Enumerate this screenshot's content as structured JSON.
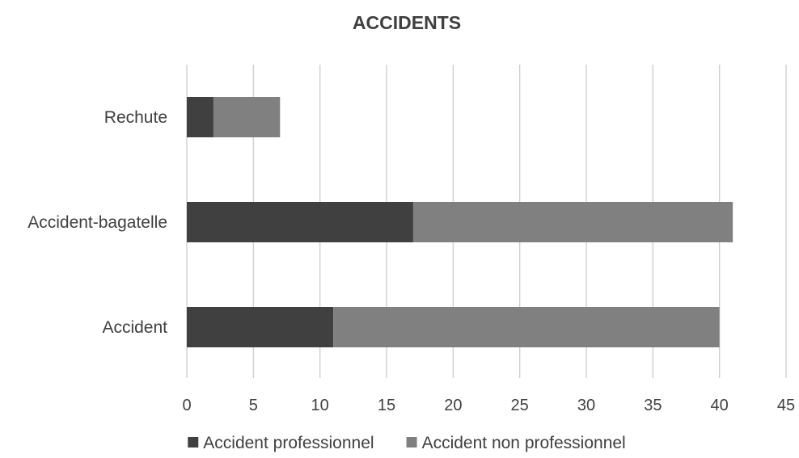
{
  "chart_data": {
    "type": "bar",
    "orientation": "horizontal",
    "stacked": true,
    "title": "ACCIDENTS",
    "categories": [
      "Accident",
      "Accident-bagatelle",
      "Rechute"
    ],
    "series": [
      {
        "name": "Accident professionnel",
        "values": [
          11,
          17,
          2
        ],
        "color": "#404040"
      },
      {
        "name": "Accident non professionnel",
        "values": [
          29,
          24,
          5
        ],
        "color": "#808080"
      }
    ],
    "xlim": [
      0,
      45
    ],
    "xticks": [
      "0",
      "5",
      "10",
      "15",
      "20",
      "25",
      "30",
      "35",
      "40",
      "45"
    ],
    "grid": true,
    "legend_position": "bottom"
  }
}
